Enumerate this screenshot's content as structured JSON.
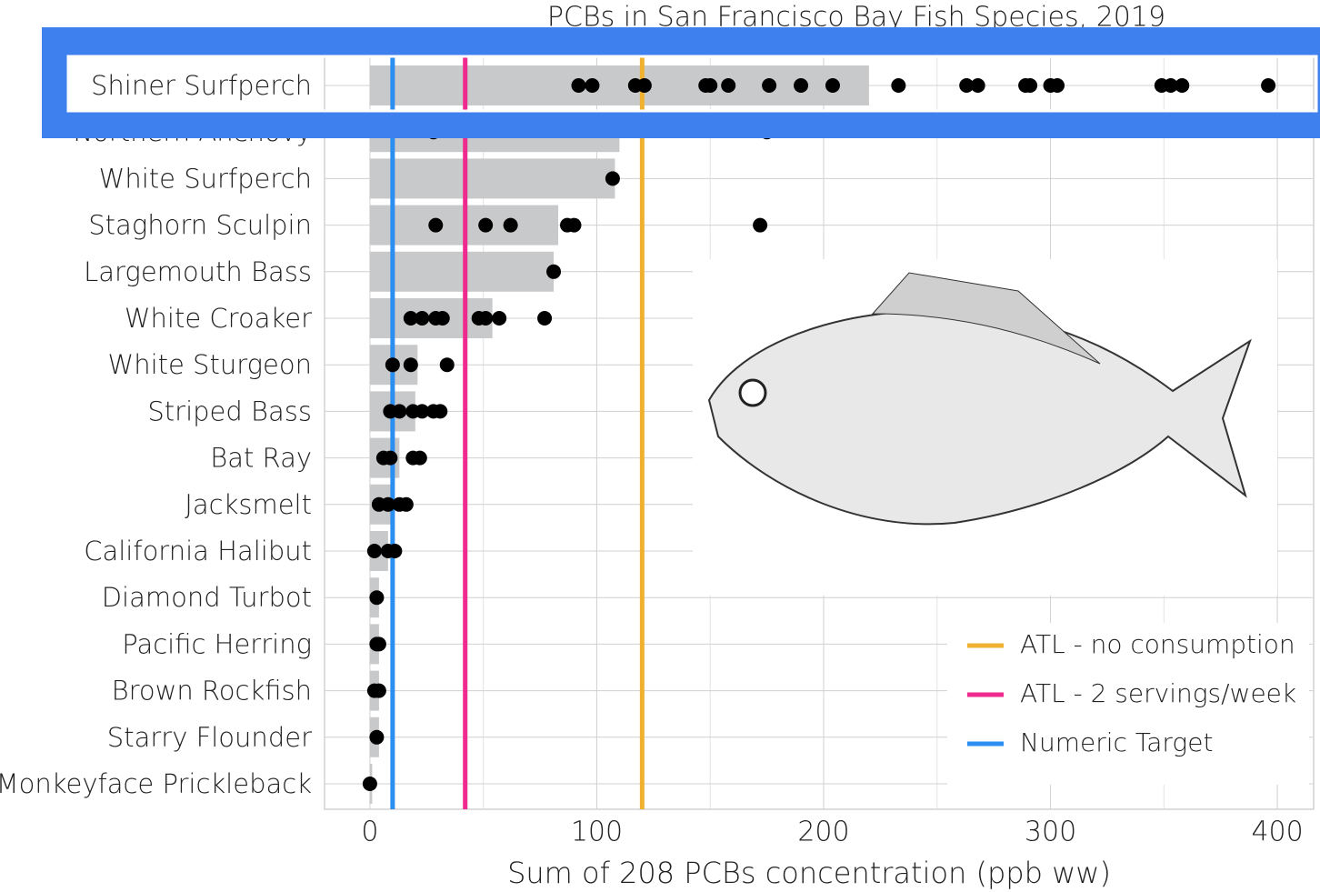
{
  "chart_data": {
    "type": "bar",
    "title": "PCBs in San Francisco Bay Fish Species, 2019",
    "x_label": "Sum of 208 PCBs concentration (ppb ww)",
    "categories": [
      "Shiner Surfperch",
      "Northern Anchovy",
      "White Surfperch",
      "Staghorn Sculpin",
      "Largemouth Bass",
      "White Croaker",
      "White Sturgeon",
      "Striped Bass",
      "Bat Ray",
      "Jacksmelt",
      "California Halibut",
      "Diamond Turbot",
      "Pacific Herring",
      "Brown Rockfish",
      "Starry Flounder",
      "Monkeyface Prickleback"
    ],
    "values": [
      220,
      110,
      108,
      83,
      81,
      54,
      21,
      20,
      13,
      10,
      8,
      4,
      4,
      4,
      4,
      1
    ],
    "color": "#c8c9ca",
    "points": [
      [
        92,
        98,
        117,
        121,
        148,
        150,
        158,
        176,
        190,
        204,
        233,
        263,
        268,
        289,
        291,
        300,
        303,
        349,
        353,
        358,
        396
      ],
      [
        28,
        175
      ],
      [
        107
      ],
      [
        29,
        51,
        62,
        87,
        90,
        172
      ],
      [
        81
      ],
      [
        18,
        23,
        29,
        32,
        48,
        51,
        57,
        77
      ],
      [
        10,
        18,
        34
      ],
      [
        9,
        13,
        19,
        23,
        28,
        31
      ],
      [
        6,
        9,
        19,
        22
      ],
      [
        4,
        8,
        13,
        16
      ],
      [
        2,
        8,
        11
      ],
      [
        3
      ],
      [
        3,
        4
      ],
      [
        2,
        4
      ],
      [
        3
      ],
      [
        0
      ]
    ],
    "point_color": "#000000",
    "reference_lines": [
      {
        "name": "ATL - no consumption",
        "color": "#f0b030",
        "value": 120
      },
      {
        "name": "ATL - 2 servings/week",
        "color": "#ee2a8e",
        "value": 42
      },
      {
        "name": "Numeric Target",
        "color": "#2a8ff0",
        "value": 10
      }
    ],
    "xlim": [
      -20,
      416
    ],
    "xticks": [
      0,
      100,
      200,
      300,
      400
    ],
    "x_minor_grid": [
      50,
      150,
      250,
      350
    ],
    "grid": true,
    "legend": "lower right"
  }
}
